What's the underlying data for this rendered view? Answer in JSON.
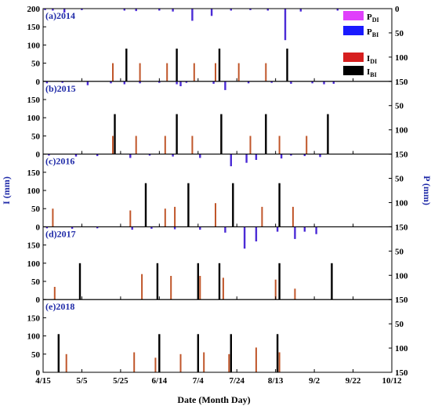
{
  "chart_data": {
    "type": "bar",
    "xlabel": "Date (Month Day)",
    "ylabel_left": "I (mm)",
    "ylabel_right": "P (mm)",
    "x_ticks": [
      "4/15",
      "5/5",
      "5/25",
      "6/14",
      "7/4",
      "7/24",
      "8/13",
      "9/2",
      "9/22",
      "10/12"
    ],
    "x_tick_days": [
      0,
      20,
      40,
      60,
      80,
      100,
      120,
      140,
      160,
      180
    ],
    "xlim": [
      0,
      180
    ],
    "left_axis": {
      "range": [
        0,
        200
      ],
      "ticks": [
        0,
        50,
        100,
        150,
        200
      ]
    },
    "right_axis": {
      "range": [
        0,
        150
      ],
      "ticks": [
        0,
        50,
        100,
        150
      ]
    },
    "series_legend": [
      "P_DI",
      "P_BI",
      "I_DI",
      "I_BI"
    ],
    "legend_labels": [
      {
        "key": "P_DI",
        "base": "P",
        "sub": "DI",
        "color": "#e040fb"
      },
      {
        "key": "P_BI",
        "base": "P",
        "sub": "BI",
        "color": "#1a1aff"
      },
      {
        "key": "I_DI",
        "base": "I",
        "sub": "DI",
        "color": "#d61f1f"
      },
      {
        "key": "I_BI",
        "base": "I",
        "sub": "BI",
        "color": "#000000"
      }
    ],
    "colors": {
      "I_DI": "#c0562a",
      "I_BI": "#000000",
      "P_BI": "#4b2bd6",
      "P_DI": "#e8b4e8"
    },
    "panels": [
      {
        "label": "(a)2014",
        "I_DI": [
          [
            36,
            50
          ],
          [
            50,
            50
          ],
          [
            64,
            50
          ],
          [
            78,
            50
          ],
          [
            89,
            50
          ],
          [
            101,
            50
          ],
          [
            115,
            50
          ]
        ],
        "I_BI": [
          [
            43,
            90
          ],
          [
            69,
            90
          ],
          [
            91,
            90
          ],
          [
            126,
            90
          ]
        ],
        "P": [
          [
            1,
            3
          ],
          [
            5,
            4
          ],
          [
            11,
            8
          ],
          [
            20,
            3
          ],
          [
            42,
            4
          ],
          [
            48,
            5
          ],
          [
            60,
            4
          ],
          [
            67,
            6
          ],
          [
            77,
            25
          ],
          [
            87,
            15
          ],
          [
            97,
            4
          ],
          [
            107,
            3
          ],
          [
            116,
            4
          ],
          [
            125,
            65
          ],
          [
            133,
            6
          ],
          [
            152,
            4
          ]
        ]
      },
      {
        "label": "(b)2015",
        "I_DI": [
          [
            36,
            50
          ],
          [
            48,
            50
          ],
          [
            63,
            50
          ],
          [
            77,
            50
          ],
          [
            92,
            50
          ],
          [
            107,
            50
          ],
          [
            122,
            50
          ],
          [
            136,
            50
          ]
        ],
        "I_BI": [
          [
            37,
            110
          ],
          [
            69,
            110
          ],
          [
            92,
            110
          ],
          [
            115,
            110
          ],
          [
            147,
            110
          ]
        ],
        "P": [
          [
            2,
            4
          ],
          [
            10,
            3
          ],
          [
            23,
            8
          ],
          [
            35,
            4
          ],
          [
            42,
            6
          ],
          [
            50,
            4
          ],
          [
            60,
            3
          ],
          [
            69,
            6
          ],
          [
            71,
            10
          ],
          [
            74,
            3
          ],
          [
            88,
            5
          ],
          [
            94,
            18
          ],
          [
            106,
            4
          ],
          [
            118,
            3
          ],
          [
            128,
            5
          ],
          [
            139,
            4
          ],
          [
            145,
            6
          ],
          [
            150,
            5
          ]
        ]
      },
      {
        "label": "(c)2016",
        "I_DI": [
          [
            5,
            50
          ],
          [
            45,
            45
          ],
          [
            63,
            50
          ],
          [
            68,
            55
          ],
          [
            89,
            65
          ],
          [
            113,
            55
          ],
          [
            129,
            55
          ]
        ],
        "I_BI": [
          [
            53,
            120
          ],
          [
            75,
            120
          ],
          [
            98,
            120
          ],
          [
            122,
            120
          ]
        ],
        "P": [
          [
            3,
            3
          ],
          [
            17,
            5
          ],
          [
            28,
            4
          ],
          [
            45,
            8
          ],
          [
            55,
            3
          ],
          [
            67,
            5
          ],
          [
            81,
            8
          ],
          [
            97,
            25
          ],
          [
            105,
            18
          ],
          [
            110,
            12
          ],
          [
            123,
            9
          ],
          [
            128,
            3
          ],
          [
            135,
            4
          ],
          [
            143,
            6
          ]
        ]
      },
      {
        "label": "(d)2017",
        "I_DI": [
          [
            6,
            35
          ],
          [
            51,
            70
          ],
          [
            66,
            65
          ],
          [
            81,
            65
          ],
          [
            93,
            60
          ],
          [
            120,
            55
          ],
          [
            130,
            30
          ]
        ],
        "I_BI": [
          [
            19,
            100
          ],
          [
            59,
            100
          ],
          [
            80,
            100
          ],
          [
            91,
            100
          ],
          [
            122,
            100
          ],
          [
            149,
            100
          ]
        ],
        "P": [
          [
            2,
            3
          ],
          [
            15,
            4
          ],
          [
            28,
            3
          ],
          [
            46,
            6
          ],
          [
            56,
            4
          ],
          [
            68,
            5
          ],
          [
            81,
            6
          ],
          [
            94,
            12
          ],
          [
            104,
            45
          ],
          [
            110,
            30
          ],
          [
            121,
            10
          ],
          [
            130,
            25
          ],
          [
            135,
            10
          ],
          [
            141,
            15
          ]
        ]
      },
      {
        "label": "(e)2018",
        "I_DI": [
          [
            12,
            50
          ],
          [
            47,
            55
          ],
          [
            58,
            40
          ],
          [
            71,
            50
          ],
          [
            83,
            55
          ],
          [
            96,
            50
          ],
          [
            110,
            68
          ],
          [
            122,
            55
          ]
        ],
        "I_BI": [
          [
            8,
            105
          ],
          [
            60,
            105
          ],
          [
            80,
            105
          ],
          [
            97,
            105
          ],
          [
            121,
            105
          ]
        ],
        "P": []
      }
    ]
  }
}
